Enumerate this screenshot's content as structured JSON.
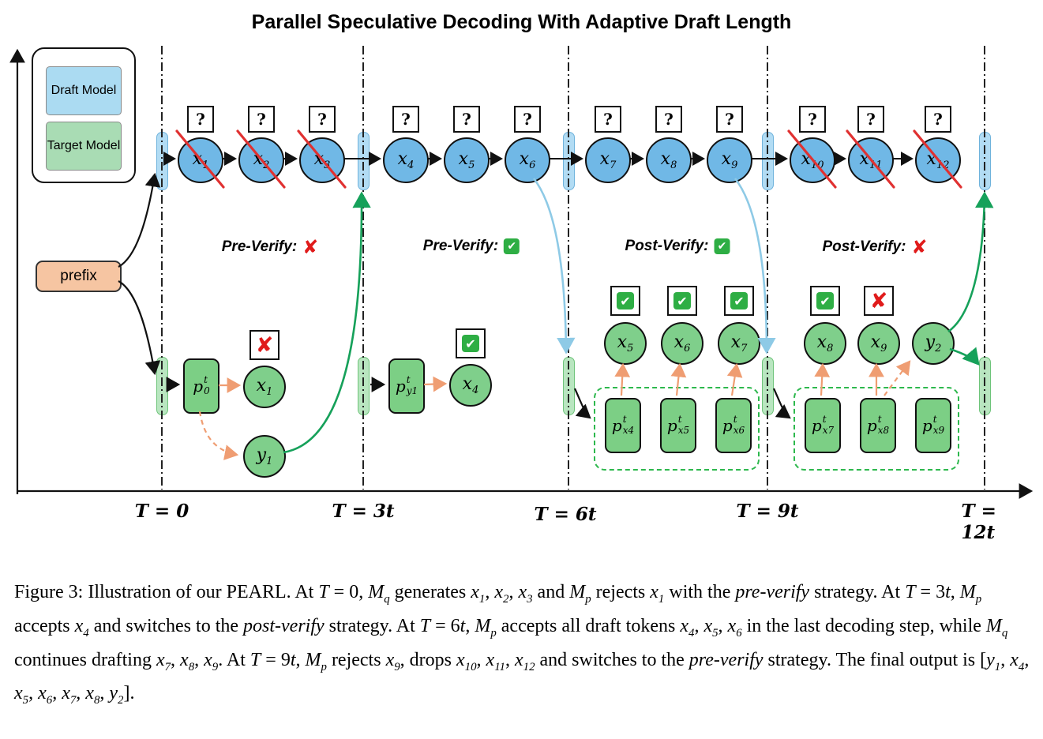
{
  "title": "Parallel Speculative Decoding With Adaptive Draft Length",
  "legend": {
    "draft": "Draft Model",
    "target": "Target Model"
  },
  "icons": {
    "check": "✔",
    "cross": "✘",
    "question": "?"
  },
  "prefix_label": "prefix",
  "timeline": {
    "labels": [
      "T = 0",
      "T = 3t",
      "T = 6t",
      "T = 9t",
      "T = 12t"
    ]
  },
  "verify": [
    {
      "label": "Pre-Verify:",
      "status": "fail"
    },
    {
      "label": "Pre-Verify:",
      "status": "pass"
    },
    {
      "label": "Post-Verify:",
      "status": "pass"
    },
    {
      "label": "Post-Verify:",
      "status": "fail"
    }
  ],
  "draft": {
    "question_mark": "?",
    "tokens": [
      {
        "b": "x",
        "s": "1",
        "crossed": true
      },
      {
        "b": "x",
        "s": "2",
        "crossed": true
      },
      {
        "b": "x",
        "s": "3",
        "crossed": true
      },
      {
        "b": "x",
        "s": "4",
        "crossed": false
      },
      {
        "b": "x",
        "s": "5",
        "crossed": false
      },
      {
        "b": "x",
        "s": "6",
        "crossed": false
      },
      {
        "b": "x",
        "s": "7",
        "crossed": false
      },
      {
        "b": "x",
        "s": "8",
        "crossed": false
      },
      {
        "b": "x",
        "s": "9",
        "crossed": false
      },
      {
        "b": "x",
        "s": "10",
        "crossed": true
      },
      {
        "b": "x",
        "s": "11",
        "crossed": true
      },
      {
        "b": "x",
        "s": "12",
        "crossed": true
      }
    ]
  },
  "target": {
    "circles": {
      "x1": {
        "b": "x",
        "s": "1",
        "status": "fail"
      },
      "y1": {
        "b": "y",
        "s": "1"
      },
      "x4": {
        "b": "x",
        "s": "4",
        "status": "pass"
      },
      "x5": {
        "b": "x",
        "s": "5",
        "status": "pass"
      },
      "x6": {
        "b": "x",
        "s": "6",
        "status": "pass"
      },
      "x7": {
        "b": "x",
        "s": "7",
        "status": "pass"
      },
      "x8": {
        "b": "x",
        "s": "8",
        "status": "pass"
      },
      "x9": {
        "b": "x",
        "s": "9",
        "status": "fail"
      },
      "y2": {
        "b": "y",
        "s": "2"
      }
    },
    "pboxes": {
      "p0": {
        "b": "p",
        "sup": "t",
        "sub": "0"
      },
      "py1": {
        "b": "p",
        "sup": "t",
        "sub": "y1"
      },
      "px4": {
        "b": "p",
        "sup": "t",
        "sub": "x4"
      },
      "px5": {
        "b": "p",
        "sup": "t",
        "sub": "x5"
      },
      "px6": {
        "b": "p",
        "sup": "t",
        "sub": "x6"
      },
      "px7": {
        "b": "p",
        "sup": "t",
        "sub": "x7"
      },
      "px8": {
        "b": "p",
        "sup": "t",
        "sub": "x8"
      },
      "px9": {
        "b": "p",
        "sup": "t",
        "sub": "x9"
      }
    }
  },
  "caption": {
    "segments": [
      {
        "t": "Figure 3: Illustration of our PEARL. At "
      },
      {
        "t": "T",
        "i": true
      },
      {
        "t": " = 0, "
      },
      {
        "t": "M",
        "i": true,
        "sub": "q"
      },
      {
        "t": " generates "
      },
      {
        "t": "x",
        "i": true,
        "sub": "1"
      },
      {
        "t": ", "
      },
      {
        "t": "x",
        "i": true,
        "sub": "2"
      },
      {
        "t": ", "
      },
      {
        "t": "x",
        "i": true,
        "sub": "3"
      },
      {
        "t": " and "
      },
      {
        "t": "M",
        "i": true,
        "sub": "p"
      },
      {
        "t": " rejects "
      },
      {
        "t": "x",
        "i": true,
        "sub": "1"
      },
      {
        "t": " with the "
      },
      {
        "t": "pre-verify",
        "i": true
      },
      {
        "t": " strategy.  At "
      },
      {
        "t": "T",
        "i": true
      },
      {
        "t": " = 3"
      },
      {
        "t": "t",
        "i": true
      },
      {
        "t": ", "
      },
      {
        "t": "M",
        "i": true,
        "sub": "p"
      },
      {
        "t": " accepts "
      },
      {
        "t": "x",
        "i": true,
        "sub": "4"
      },
      {
        "t": " and switches to the "
      },
      {
        "t": "post-verify",
        "i": true
      },
      {
        "t": " strategy.  At "
      },
      {
        "t": "T",
        "i": true
      },
      {
        "t": " = 6"
      },
      {
        "t": "t",
        "i": true
      },
      {
        "t": ", "
      },
      {
        "t": "M",
        "i": true,
        "sub": "p"
      },
      {
        "t": " accepts all draft tokens "
      },
      {
        "t": "x",
        "i": true,
        "sub": "4"
      },
      {
        "t": ", "
      },
      {
        "t": "x",
        "i": true,
        "sub": "5"
      },
      {
        "t": ", "
      },
      {
        "t": "x",
        "i": true,
        "sub": "6"
      },
      {
        "t": " in the last decoding step, while "
      },
      {
        "t": "M",
        "i": true,
        "sub": "q"
      },
      {
        "t": " continues drafting "
      },
      {
        "t": "x",
        "i": true,
        "sub": "7"
      },
      {
        "t": ", "
      },
      {
        "t": "x",
        "i": true,
        "sub": "8"
      },
      {
        "t": ", "
      },
      {
        "t": "x",
        "i": true,
        "sub": "9"
      },
      {
        "t": ".  At "
      },
      {
        "t": "T",
        "i": true
      },
      {
        "t": " = 9"
      },
      {
        "t": "t",
        "i": true
      },
      {
        "t": ", "
      },
      {
        "t": "M",
        "i": true,
        "sub": "p"
      },
      {
        "t": " rejects "
      },
      {
        "t": "x",
        "i": true,
        "sub": "9"
      },
      {
        "t": ", drops "
      },
      {
        "t": "x",
        "i": true,
        "sub": "10"
      },
      {
        "t": ", "
      },
      {
        "t": "x",
        "i": true,
        "sub": "11"
      },
      {
        "t": ", "
      },
      {
        "t": "x",
        "i": true,
        "sub": "12"
      },
      {
        "t": " and switches to the "
      },
      {
        "t": "pre-verify",
        "i": true
      },
      {
        "t": " strategy. The final output is ["
      },
      {
        "t": "y",
        "i": true,
        "sub": "1"
      },
      {
        "t": ", "
      },
      {
        "t": "x",
        "i": true,
        "sub": "4"
      },
      {
        "t": ", "
      },
      {
        "t": "x",
        "i": true,
        "sub": "5"
      },
      {
        "t": ", "
      },
      {
        "t": "x",
        "i": true,
        "sub": "6"
      },
      {
        "t": ", "
      },
      {
        "t": "x",
        "i": true,
        "sub": "7"
      },
      {
        "t": ", "
      },
      {
        "t": "x",
        "i": true,
        "sub": "8"
      },
      {
        "t": ", "
      },
      {
        "t": "y",
        "i": true,
        "sub": "2"
      },
      {
        "t": "]."
      }
    ]
  }
}
